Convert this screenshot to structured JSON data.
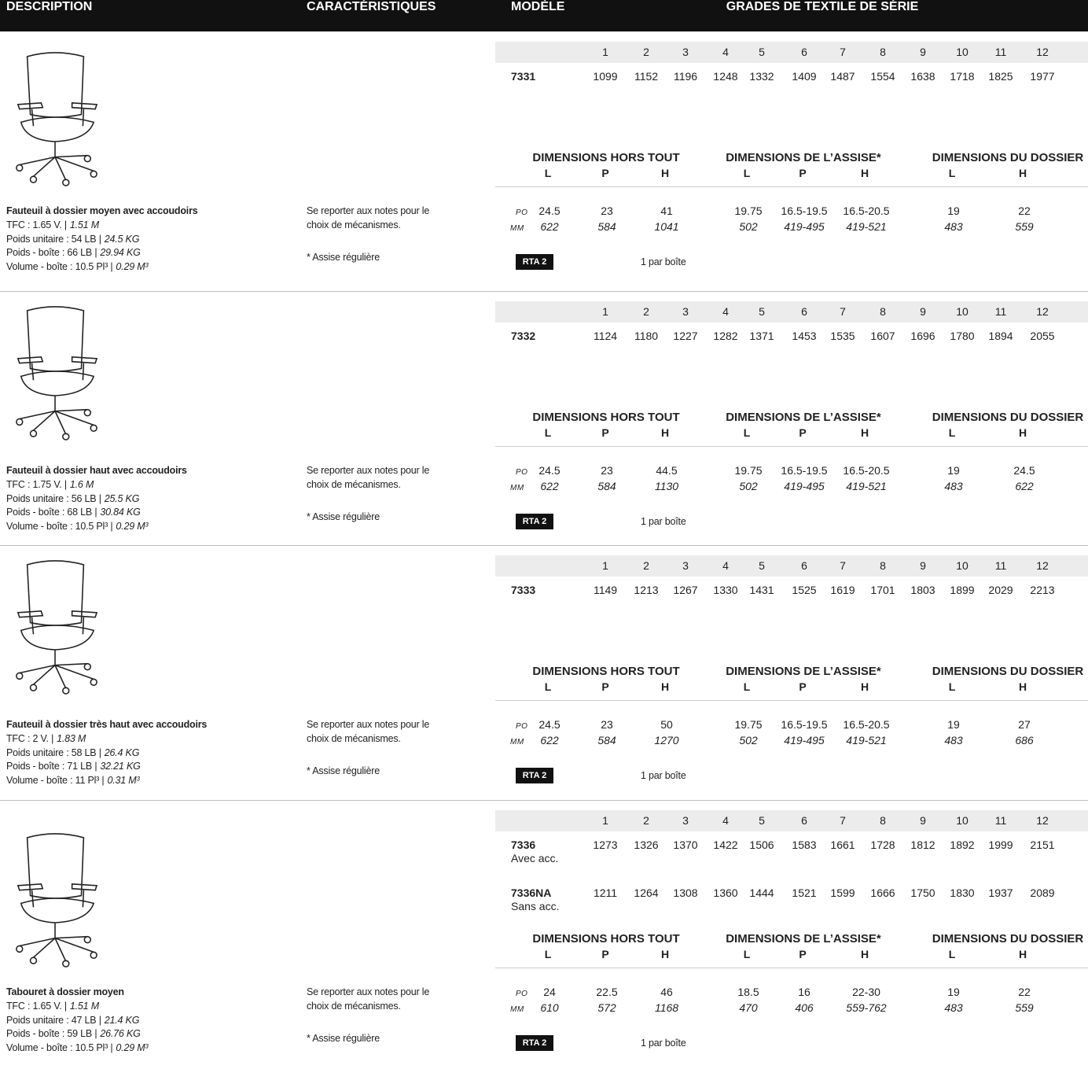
{
  "header": {
    "columns": [
      "DESCRIPTION",
      "CARACTÉRISTIQUES",
      "MODÈLE",
      "GRADES DE TEXTILE DE SÉRIE"
    ]
  },
  "products": [
    {
      "name": "Fauteuil à dossier moyen avec accoudoirs",
      "details": [
        {
          "text": "TFC : 1.65 V. |",
          "italic": "1.51 M"
        },
        {
          "text": "Poids unitaire : 54 LB |",
          "italic": "24.5 KG"
        },
        {
          "text": "Poids - boîte : 66 LB |",
          "italic": "29.94 KG"
        },
        {
          "text": "Volume - boîte : 10.5 Pl³ |",
          "italic": "0.29 M³"
        }
      ],
      "features": [
        "Se reporter aux notes pour le",
        "choix de mécanismes.",
        "* Assise régulière"
      ],
      "grades": [
        1,
        2,
        3,
        4,
        5,
        6,
        7,
        8,
        9,
        10,
        11,
        12
      ],
      "models": [
        {
          "code": "7331",
          "prices": [
            1099,
            1152,
            1196,
            1248,
            1332,
            1409,
            1487,
            1554,
            1638,
            1718,
            1825,
            1977
          ]
        }
      ],
      "dim_titles": [
        "DIMENSIONS HORS TOUT",
        "DIMENSIONS DE L’ASSISE*",
        "DIMENSIONS DU DOSSIER"
      ],
      "dim_columns": [
        "L",
        "P",
        "H",
        "L",
        "P",
        "H",
        "L",
        "H"
      ],
      "units": [
        "PO",
        "MM"
      ],
      "po": [
        24.5,
        23,
        41,
        19.75,
        "16.5-19.5",
        "16.5-20.5",
        19,
        22
      ],
      "mm": [
        622,
        584,
        1041,
        502,
        "419-495",
        "419-521",
        483,
        559
      ],
      "rta": "RTA 2",
      "per_box": "1 par boîte"
    },
    {
      "name": "Fauteuil à dossier haut avec accoudoirs",
      "details": [
        {
          "text": "TFC : 1.75 V. |",
          "italic": "1.6 M"
        },
        {
          "text": "Poids unitaire : 56 LB |",
          "italic": "25.5 KG"
        },
        {
          "text": "Poids - boîte : 68 LB |",
          "italic": "30.84 KG"
        },
        {
          "text": "Volume - boîte : 10.5 Pl³ |",
          "italic": "0.29 M³"
        }
      ],
      "features": [
        "Se reporter aux notes pour le",
        "choix de mécanismes.",
        "* Assise régulière"
      ],
      "grades": [
        1,
        2,
        3,
        4,
        5,
        6,
        7,
        8,
        9,
        10,
        11,
        12
      ],
      "models": [
        {
          "code": "7332",
          "prices": [
            1124,
            1180,
            1227,
            1282,
            1371,
            1453,
            1535,
            1607,
            1696,
            1780,
            1894,
            2055
          ]
        }
      ],
      "dim_titles": [
        "DIMENSIONS HORS TOUT",
        "DIMENSIONS DE L’ASSISE*",
        "DIMENSIONS DU DOSSIER"
      ],
      "dim_columns": [
        "L",
        "P",
        "H",
        "L",
        "P",
        "H",
        "L",
        "H"
      ],
      "units": [
        "PO",
        "MM"
      ],
      "po": [
        24.5,
        23,
        44.5,
        19.75,
        "16.5-19.5",
        "16.5-20.5",
        19,
        24.5
      ],
      "mm": [
        622,
        584,
        1130,
        502,
        "419-495",
        "419-521",
        483,
        622
      ],
      "rta": "RTA 2",
      "per_box": "1 par boîte"
    },
    {
      "name": "Fauteuil à dossier très haut avec accoudoirs",
      "details": [
        {
          "text": "TFC : 2 V. |",
          "italic": "1.83 M"
        },
        {
          "text": "Poids unitaire : 58 LB |",
          "italic": "26.4 KG"
        },
        {
          "text": "Poids - boîte : 71 LB |",
          "italic": "32.21 KG"
        },
        {
          "text": "Volume - boîte : 11 Pl³ |",
          "italic": "0.31 M³"
        }
      ],
      "features": [
        "Se reporter aux notes pour le",
        "choix de mécanismes.",
        "* Assise régulière"
      ],
      "grades": [
        1,
        2,
        3,
        4,
        5,
        6,
        7,
        8,
        9,
        10,
        11,
        12
      ],
      "models": [
        {
          "code": "7333",
          "prices": [
            1149,
            1213,
            1267,
            1330,
            1431,
            1525,
            1619,
            1701,
            1803,
            1899,
            2029,
            2213
          ]
        }
      ],
      "dim_titles": [
        "DIMENSIONS HORS TOUT",
        "DIMENSIONS DE L’ASSISE*",
        "DIMENSIONS DU DOSSIER"
      ],
      "dim_columns": [
        "L",
        "P",
        "H",
        "L",
        "P",
        "H",
        "L",
        "H"
      ],
      "units": [
        "PO",
        "MM"
      ],
      "po": [
        24.5,
        23,
        50,
        19.75,
        "16.5-19.5",
        "16.5-20.5",
        19,
        27
      ],
      "mm": [
        622,
        584,
        1270,
        502,
        "419-495",
        "419-521",
        483,
        686
      ],
      "rta": "RTA 2",
      "per_box": "1 par boîte"
    },
    {
      "name": "Tabouret à dossier moyen",
      "details": [
        {
          "text": "TFC : 1.65 V. |",
          "italic": "1.51 M"
        },
        {
          "text": "Poids unitaire : 47 LB |",
          "italic": "21.4 KG"
        },
        {
          "text": "Poids - boîte : 59 LB |",
          "italic": "26.76 KG"
        },
        {
          "text": "Volume - boîte : 10.5 Pl³ |",
          "italic": "0.29 M³"
        }
      ],
      "features": [
        "Se reporter aux notes pour le",
        "choix de mécanismes.",
        "* Assise régulière"
      ],
      "grades": [
        1,
        2,
        3,
        4,
        5,
        6,
        7,
        8,
        9,
        10,
        11,
        12
      ],
      "models": [
        {
          "code": "7336",
          "note": "Avec acc.",
          "prices": [
            1273,
            1326,
            1370,
            1422,
            1506,
            1583,
            1661,
            1728,
            1812,
            1892,
            1999,
            2151
          ]
        },
        {
          "code": "7336NA",
          "note": "Sans acc.",
          "prices": [
            1211,
            1264,
            1308,
            1360,
            1444,
            1521,
            1599,
            1666,
            1750,
            1830,
            1937,
            2089
          ]
        }
      ],
      "dim_titles": [
        "DIMENSIONS HORS TOUT",
        "DIMENSIONS DE L’ASSISE*",
        "DIMENSIONS DU DOSSIER"
      ],
      "dim_columns": [
        "L",
        "P",
        "H",
        "L",
        "P",
        "H",
        "L",
        "H"
      ],
      "units": [
        "PO",
        "MM"
      ],
      "po": [
        24,
        22.5,
        46,
        18.5,
        16,
        "22-30",
        19,
        22
      ],
      "mm": [
        610,
        572,
        1168,
        470,
        406,
        "559-762",
        483,
        559
      ],
      "rta": "RTA 2",
      "per_box": "1 par boîte"
    }
  ]
}
